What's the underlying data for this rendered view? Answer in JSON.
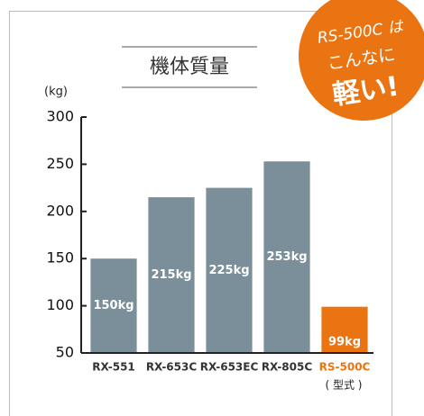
{
  "chart_data": {
    "type": "bar",
    "title": "機体質量",
    "y_label": "(kg)",
    "x_note": "( 型式 )",
    "badge": [
      "RS-500C は",
      "こんなに",
      "軽い!"
    ],
    "categories": [
      "RX-551",
      "RX-653C",
      "RX-653EC",
      "RX-805C",
      "RS-500C"
    ],
    "values": [
      150,
      215,
      225,
      253,
      99
    ],
    "value_labels": [
      "150kg",
      "215kg",
      "225kg",
      "253kg",
      "99kg"
    ],
    "colors": [
      "#7a8f99",
      "#7a8f99",
      "#7a8f99",
      "#7a8f99",
      "#ea7411"
    ],
    "ylim": [
      50,
      300
    ],
    "yticks": [
      50,
      100,
      150,
      200,
      250,
      300
    ],
    "grid": false
  }
}
